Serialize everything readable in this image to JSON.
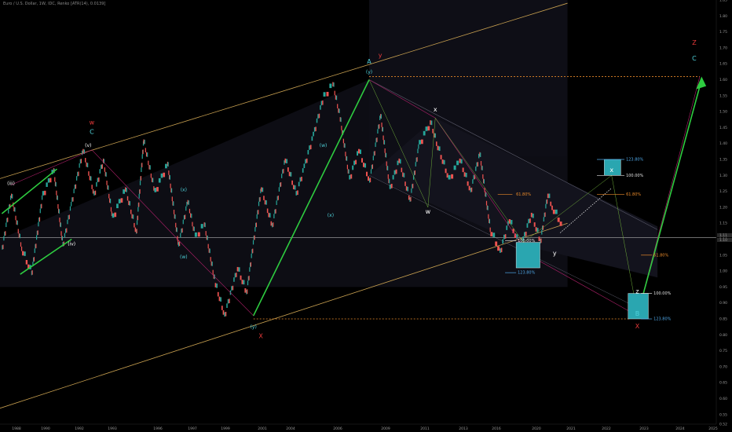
{
  "header": {
    "title": "Euro / U.S. Dollar, 1W, IDC, Renko [ATR(14), 0.0139]"
  },
  "colors": {
    "background": "#000000",
    "up_brick": "#26a69a",
    "down_brick": "#ef5350",
    "channel": "#c8a050",
    "impulse": "#2ecc40",
    "wave_red": "#e83a3a",
    "wave_cyan": "#4fd1d9",
    "fib_blue": "#4fa8e8",
    "fib_orange": "#e8892a",
    "price_line": "#b0b0b0",
    "box": "#2aa6b0"
  },
  "chart_data": {
    "type": "line",
    "title": "Euro / U.S. Dollar, 1W, IDC, Renko [ATR(14), 0.0139]",
    "xlabel": "",
    "ylabel": "",
    "xlim": [
      1987.5,
      2026.5
    ],
    "ylim": [
      0.52,
      1.85
    ],
    "x_ticks": [
      "1988",
      "1990",
      "1992",
      "1993",
      "1996",
      "1997",
      "1999",
      "2001",
      "2004",
      "2006",
      "2009",
      "2011",
      "2013",
      "2016",
      "2020",
      "2021",
      "2022",
      "2023",
      "2024",
      "2025",
      "2025"
    ],
    "y_ticks": [
      "1.85",
      "1.80",
      "1.75",
      "1.70",
      "1.65",
      "1.60",
      "1.55",
      "1.50",
      "1.45",
      "1.40",
      "1.35",
      "1.30",
      "1.25",
      "1.20",
      "1.15",
      "1.10",
      "1.05",
      "1.00",
      "0.95",
      "0.90",
      "0.85",
      "0.80",
      "0.75",
      "0.70",
      "0.65",
      "0.60",
      "0.55",
      "0.52"
    ],
    "current_price": "1.11",
    "current_price_2": "1.10",
    "grid": false,
    "series": [
      {
        "x": [
          1987.6,
          1988.1,
          1988.7,
          1989.2,
          1989.8,
          1990.4,
          1990.9,
          1991.4,
          1992.0,
          1992.6,
          1993.1,
          1993.6,
          1994.3,
          1994.9,
          1995.3,
          1995.9,
          1996.6,
          1997.2,
          1997.7,
          1998.1,
          1998.6,
          1999.2,
          1999.7,
          2000.4,
          2000.9,
          2001.3,
          2001.7,
          2002.3,
          2003.0,
          2003.6,
          2004.1,
          2004.6,
          2005.1,
          2005.6,
          2006.0,
          2006.5,
          2007.0,
          2007.6,
          2008.2,
          2008.7,
          2009.2,
          2009.8,
          2010.3,
          2010.9,
          2011.3,
          2011.9,
          2012.5,
          2013.1,
          2013.6,
          2014.2,
          2014.7,
          2015.2,
          2015.8,
          2016.4,
          2016.9,
          2017.3,
          2017.6,
          2018.1
        ],
        "values": [
          1.07,
          1.24,
          1.06,
          0.99,
          1.24,
          1.32,
          1.08,
          1.22,
          1.38,
          1.24,
          1.35,
          1.17,
          1.26,
          1.12,
          1.41,
          1.25,
          1.34,
          1.08,
          1.22,
          1.11,
          1.15,
          0.96,
          0.86,
          1.01,
          0.93,
          1.1,
          1.26,
          1.14,
          1.35,
          1.24,
          1.34,
          1.44,
          1.55,
          1.59,
          1.48,
          1.29,
          1.38,
          1.28,
          1.49,
          1.26,
          1.35,
          1.22,
          1.4,
          1.47,
          1.39,
          1.29,
          1.35,
          1.25,
          1.37,
          1.12,
          1.06,
          1.16,
          1.07,
          1.18,
          1.09,
          1.24,
          1.19,
          1.14
        ]
      }
    ],
    "fib_levels_1": [
      {
        "label": "123.80%",
        "value": 1.35
      },
      {
        "label": "100.00%",
        "value": 1.3
      },
      {
        "label": "61.80%",
        "value": 1.24
      }
    ],
    "fib_levels_2": [
      {
        "label": "100.00%",
        "value": 1.095
      },
      {
        "label": "123.80%",
        "value": 0.995
      }
    ],
    "fib_levels_3": [
      {
        "label": "61.80%",
        "value": 1.05
      },
      {
        "label": "100.00%",
        "value": 0.93
      },
      {
        "label": "123.80%",
        "value": 0.85
      }
    ],
    "wave_labels": [
      {
        "text": "w",
        "x": 1992.5,
        "y": 1.46,
        "color": "#e83a3a"
      },
      {
        "text": "C",
        "x": 1992.5,
        "y": 1.43,
        "color": "#4fd1d9"
      },
      {
        "text": "(v)",
        "x": 1992.3,
        "y": 1.39,
        "color": "#ffffff"
      },
      {
        "text": "(iii)",
        "x": 1988.1,
        "y": 1.27,
        "color": "#ffffff"
      },
      {
        "text": "(iv)",
        "x": 1991.4,
        "y": 1.08,
        "color": "#ffffff"
      },
      {
        "text": "(x)",
        "x": 1997.5,
        "y": 1.25,
        "color": "#4fd1d9"
      },
      {
        "text": "(w)",
        "x": 1997.5,
        "y": 1.04,
        "color": "#4fd1d9"
      },
      {
        "text": "(y)",
        "x": 2001.3,
        "y": 0.82,
        "color": "#4fd1d9"
      },
      {
        "text": "X",
        "x": 2001.7,
        "y": 0.79,
        "color": "#e83a3a"
      },
      {
        "text": "(w)",
        "x": 2005.1,
        "y": 1.39,
        "color": "#4fd1d9"
      },
      {
        "text": "(x)",
        "x": 2005.5,
        "y": 1.17,
        "color": "#4fd1d9"
      },
      {
        "text": "A",
        "x": 2007.6,
        "y": 1.65,
        "color": "#4fd1d9"
      },
      {
        "text": "y",
        "x": 2008.2,
        "y": 1.67,
        "color": "#e83a3a"
      },
      {
        "text": "(y)",
        "x": 2007.6,
        "y": 1.62,
        "color": "#4fd1d9"
      },
      {
        "text": "x",
        "x": 2011.2,
        "y": 1.5,
        "color": "#ffffff"
      },
      {
        "text": "w",
        "x": 2010.8,
        "y": 1.18,
        "color": "#ffffff"
      },
      {
        "text": "y",
        "x": 2017.7,
        "y": 1.05,
        "color": "#ffffff"
      },
      {
        "text": "x",
        "x": 2020.8,
        "y": 1.31,
        "color": "#ffffff"
      },
      {
        "text": "z",
        "x": 2022.2,
        "y": 0.93,
        "color": "#ffffff"
      },
      {
        "text": "B",
        "x": 2022.2,
        "y": 0.86,
        "color": "#4fd1d9"
      },
      {
        "text": "X",
        "x": 2022.2,
        "y": 0.82,
        "color": "#e83a3a"
      },
      {
        "text": "Z",
        "x": 2025.3,
        "y": 1.71,
        "color": "#e83a3a"
      },
      {
        "text": "C",
        "x": 2025.3,
        "y": 1.66,
        "color": "#4fd1d9"
      }
    ]
  }
}
